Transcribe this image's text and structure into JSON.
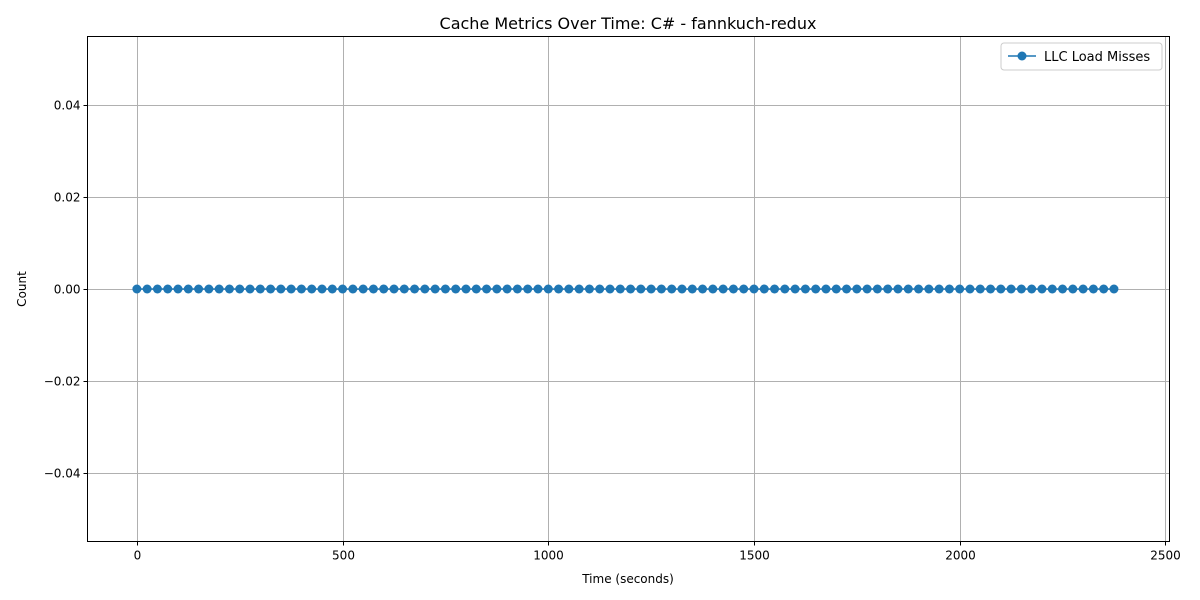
{
  "chart_data": {
    "type": "line",
    "title": "Cache Metrics Over Time: C# - fannkuch-redux",
    "xlabel": "Time (seconds)",
    "ylabel": "Count",
    "xlim": [
      -120,
      2510
    ],
    "ylim": [
      -0.055,
      0.055
    ],
    "x_ticks": [
      0,
      500,
      1000,
      1500,
      2000,
      2500
    ],
    "x_tick_labels": [
      "0",
      "500",
      "1000",
      "1500",
      "2000",
      "2500"
    ],
    "y_ticks": [
      -0.04,
      -0.02,
      0.0,
      0.02,
      0.04
    ],
    "y_tick_labels": [
      "−0.04",
      "−0.02",
      "0.00",
      "0.02",
      "0.04"
    ],
    "grid": true,
    "legend_position": "top-right",
    "series": [
      {
        "name": "LLC Load Misses",
        "color": "#1f77b4",
        "marker": "circle",
        "x_start": 0,
        "x_step": 25,
        "count": 96,
        "y_constant": 0
      }
    ]
  }
}
